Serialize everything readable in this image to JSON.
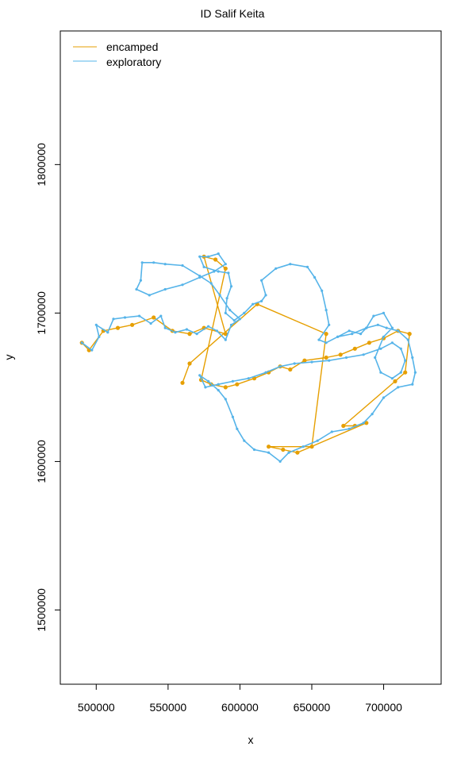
{
  "chart_data": {
    "type": "line",
    "title": "ID Salif Keita",
    "xlabel": "x",
    "ylabel": "y",
    "xlim": [
      475000,
      740000
    ],
    "ylim": [
      1450000,
      1890000
    ],
    "xticks": [
      500000,
      550000,
      600000,
      650000,
      700000
    ],
    "yticks": [
      1500000,
      1600000,
      1700000,
      1800000
    ],
    "grid": false,
    "legend_position": "top-left",
    "series": [
      {
        "name": "encamped",
        "color": "#E69F00",
        "points": [
          [
            490000,
            1680000
          ],
          [
            495000,
            1675000
          ],
          [
            505000,
            1688000
          ],
          [
            515000,
            1690000
          ],
          [
            525000,
            1692000
          ],
          [
            540000,
            1697000
          ],
          [
            553000,
            1688000
          ],
          [
            565000,
            1686000
          ],
          [
            575000,
            1690000
          ],
          [
            590000,
            1686000
          ],
          [
            575000,
            1738000
          ],
          [
            583000,
            1736000
          ],
          [
            590000,
            1730000
          ],
          [
            573000,
            1655000
          ],
          [
            580000,
            1652000
          ],
          [
            590000,
            1650000
          ],
          [
            598000,
            1652000
          ],
          [
            610000,
            1656000
          ],
          [
            620000,
            1660000
          ],
          [
            628000,
            1664000
          ],
          [
            635000,
            1662000
          ],
          [
            645000,
            1668000
          ],
          [
            660000,
            1670000
          ],
          [
            670000,
            1672000
          ],
          [
            680000,
            1676000
          ],
          [
            690000,
            1680000
          ],
          [
            700000,
            1683000
          ],
          [
            710000,
            1688000
          ],
          [
            718000,
            1686000
          ],
          [
            715000,
            1660000
          ],
          [
            708000,
            1654000
          ],
          [
            672000,
            1624000
          ],
          [
            680000,
            1624000
          ],
          [
            688000,
            1626000
          ],
          [
            640000,
            1606000
          ],
          [
            630000,
            1608000
          ],
          [
            620000,
            1610000
          ],
          [
            650000,
            1610000
          ],
          [
            660000,
            1686000
          ],
          [
            612000,
            1706000
          ],
          [
            565000,
            1666000
          ],
          [
            560000,
            1653000
          ]
        ]
      },
      {
        "name": "exploratory",
        "color": "#56B4E9",
        "points": [
          [
            490000,
            1680000
          ],
          [
            497000,
            1675000
          ],
          [
            502000,
            1684000
          ],
          [
            500000,
            1692000
          ],
          [
            508000,
            1687000
          ],
          [
            512000,
            1696000
          ],
          [
            520000,
            1697000
          ],
          [
            530000,
            1698000
          ],
          [
            538000,
            1693000
          ],
          [
            545000,
            1698000
          ],
          [
            548000,
            1690000
          ],
          [
            555000,
            1687000
          ],
          [
            563000,
            1689000
          ],
          [
            570000,
            1686000
          ],
          [
            578000,
            1691000
          ],
          [
            584000,
            1688000
          ],
          [
            590000,
            1682000
          ],
          [
            594000,
            1692000
          ],
          [
            600000,
            1696000
          ],
          [
            593000,
            1702000
          ],
          [
            586000,
            1712000
          ],
          [
            580000,
            1720000
          ],
          [
            572000,
            1725000
          ],
          [
            560000,
            1732000
          ],
          [
            548000,
            1733000
          ],
          [
            540000,
            1734000
          ],
          [
            532000,
            1734000
          ],
          [
            531000,
            1722000
          ],
          [
            528000,
            1716000
          ],
          [
            537000,
            1712000
          ],
          [
            548000,
            1716000
          ],
          [
            560000,
            1719000
          ],
          [
            572000,
            1724000
          ],
          [
            582000,
            1728000
          ],
          [
            590000,
            1733000
          ],
          [
            585000,
            1740000
          ],
          [
            578000,
            1738000
          ],
          [
            572000,
            1738000
          ],
          [
            575000,
            1731000
          ],
          [
            585000,
            1728000
          ],
          [
            592000,
            1727000
          ],
          [
            594000,
            1718000
          ],
          [
            591000,
            1710000
          ],
          [
            590000,
            1700000
          ],
          [
            596000,
            1695000
          ],
          [
            603000,
            1700000
          ],
          [
            609000,
            1706000
          ],
          [
            615000,
            1708000
          ],
          [
            618000,
            1712000
          ],
          [
            615000,
            1722000
          ],
          [
            625000,
            1730000
          ],
          [
            635000,
            1733000
          ],
          [
            647000,
            1731000
          ],
          [
            652000,
            1724000
          ],
          [
            657000,
            1715000
          ],
          [
            660000,
            1702000
          ],
          [
            662000,
            1692000
          ],
          [
            655000,
            1682000
          ],
          [
            660000,
            1680000
          ],
          [
            668000,
            1684000
          ],
          [
            678000,
            1686000
          ],
          [
            688000,
            1690000
          ],
          [
            696000,
            1692000
          ],
          [
            702000,
            1690000
          ],
          [
            710000,
            1688000
          ],
          [
            717000,
            1682000
          ],
          [
            720000,
            1670000
          ],
          [
            722000,
            1660000
          ],
          [
            720000,
            1652000
          ],
          [
            710000,
            1650000
          ],
          [
            700000,
            1643000
          ],
          [
            692000,
            1632000
          ],
          [
            686000,
            1626000
          ],
          [
            676000,
            1622000
          ],
          [
            664000,
            1620000
          ],
          [
            654000,
            1614000
          ],
          [
            644000,
            1610000
          ],
          [
            634000,
            1606000
          ],
          [
            628000,
            1600000
          ],
          [
            620000,
            1606000
          ],
          [
            610000,
            1608000
          ],
          [
            603000,
            1614000
          ],
          [
            598000,
            1622000
          ],
          [
            595000,
            1630000
          ],
          [
            590000,
            1642000
          ],
          [
            585000,
            1648000
          ],
          [
            578000,
            1654000
          ],
          [
            572000,
            1658000
          ],
          [
            576000,
            1650000
          ],
          [
            585000,
            1652000
          ],
          [
            595000,
            1654000
          ],
          [
            606000,
            1656000
          ],
          [
            618000,
            1660000
          ],
          [
            628000,
            1664000
          ],
          [
            638000,
            1666000
          ],
          [
            650000,
            1667000
          ],
          [
            662000,
            1668000
          ],
          [
            674000,
            1670000
          ],
          [
            686000,
            1672000
          ],
          [
            698000,
            1676000
          ],
          [
            706000,
            1680000
          ],
          [
            712000,
            1676000
          ],
          [
            715000,
            1668000
          ],
          [
            712000,
            1660000
          ],
          [
            706000,
            1656000
          ],
          [
            698000,
            1660000
          ],
          [
            694000,
            1670000
          ],
          [
            700000,
            1684000
          ],
          [
            706000,
            1690000
          ],
          [
            700000,
            1700000
          ],
          [
            693000,
            1698000
          ],
          [
            688000,
            1690000
          ],
          [
            684000,
            1686000
          ],
          [
            676000,
            1688000
          ],
          [
            668000,
            1684000
          ]
        ]
      }
    ]
  }
}
